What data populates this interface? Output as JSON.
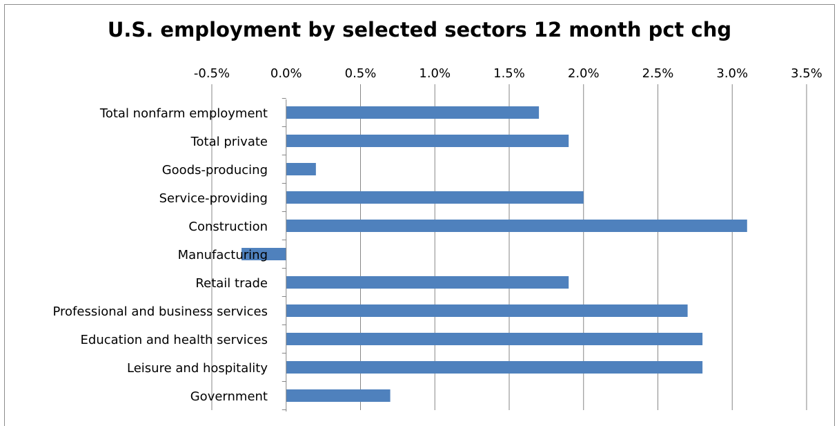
{
  "chart_data": {
    "type": "bar",
    "orientation": "horizontal",
    "title": "U.S. employment by selected sectors 12 month pct chg",
    "xlabel": "",
    "ylabel": "",
    "xlim": [
      -0.5,
      3.5
    ],
    "x_ticks": [
      "-0.5%",
      "0.0%",
      "0.5%",
      "1.0%",
      "1.5%",
      "2.0%",
      "2.5%",
      "3.0%",
      "3.5%"
    ],
    "x_axis_position": "top",
    "grid": true,
    "legend": "none",
    "categories": [
      "Total nonfarm employment",
      "Total private",
      "Goods-producing",
      "Service-providing",
      "Construction",
      "Manufacturing",
      "Retail trade",
      "Professional and business services",
      "Education and health services",
      "Leisure and hospitality",
      "Government"
    ],
    "values": [
      1.7,
      1.9,
      0.2,
      2.0,
      3.1,
      -0.3,
      1.9,
      2.7,
      2.8,
      2.8,
      0.7
    ],
    "unit": "%",
    "bar_color": "#4f81bd"
  }
}
